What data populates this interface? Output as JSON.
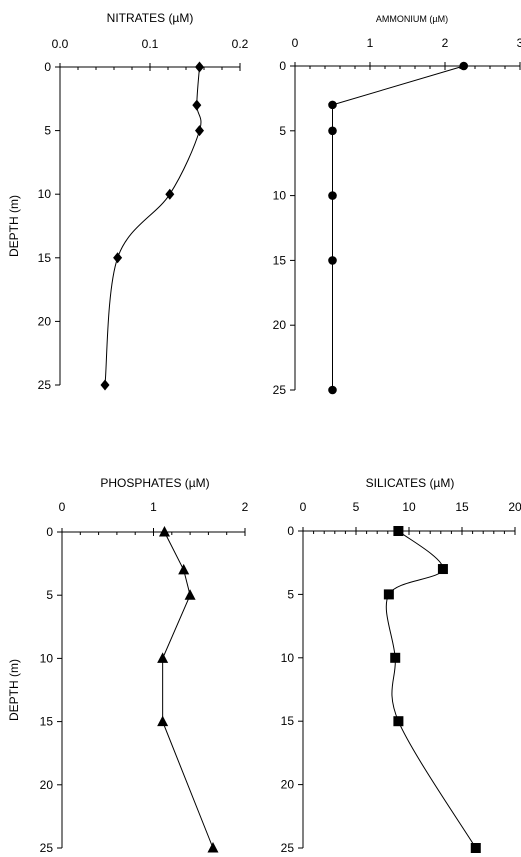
{
  "chart_data": [
    {
      "type": "line",
      "title": "NITRATES (µM)",
      "ylabel": "DEPTH (m)",
      "xlim": [
        0,
        0.2
      ],
      "ylim": [
        25,
        0
      ],
      "y_inverted": true,
      "x_axis_position": "top",
      "x_ticks": [
        0,
        0.1,
        0.2
      ],
      "x_tick_labels": [
        "0.0",
        "0.1",
        "0.2"
      ],
      "y_ticks": [
        0,
        5,
        10,
        15,
        20,
        25
      ],
      "y_tick_labels": [
        "0",
        "5",
        "10",
        "15",
        "20",
        "25"
      ],
      "marker": "diamond",
      "curve": "smooth",
      "series": [
        {
          "x": [
            0.155,
            0.152,
            0.155,
            0.122,
            0.064,
            0.05
          ],
          "y": [
            0,
            3,
            5,
            10,
            15,
            25
          ]
        }
      ]
    },
    {
      "type": "line",
      "title": "AMMONIUM (µM)",
      "ylabel": "",
      "xlim": [
        0,
        3
      ],
      "ylim": [
        25,
        0
      ],
      "y_inverted": true,
      "x_axis_position": "top",
      "x_ticks": [
        0,
        1,
        2,
        3
      ],
      "x_tick_labels": [
        "0",
        "1",
        "2",
        "3"
      ],
      "y_ticks": [
        0,
        5,
        10,
        15,
        20,
        25
      ],
      "y_tick_labels": [
        "0",
        "5",
        "10",
        "15",
        "20",
        "25"
      ],
      "marker": "circle",
      "curve": "straight",
      "series": [
        {
          "x": [
            2.25,
            0.5,
            0.5,
            0.5,
            0.5,
            0.5
          ],
          "y": [
            0,
            3,
            5,
            10,
            15,
            25
          ]
        }
      ]
    },
    {
      "type": "line",
      "title": "PHOSPHATES (µM)",
      "ylabel": "DEPTH (m)",
      "xlim": [
        0,
        2
      ],
      "ylim": [
        25,
        0
      ],
      "y_inverted": true,
      "x_axis_position": "top",
      "x_ticks": [
        0,
        1,
        2
      ],
      "x_tick_labels": [
        "0",
        "1",
        "2"
      ],
      "y_ticks": [
        0,
        5,
        10,
        15,
        20,
        25
      ],
      "y_tick_labels": [
        "0",
        "5",
        "10",
        "15",
        "20",
        "25"
      ],
      "marker": "triangle",
      "curve": "straight",
      "series": [
        {
          "x": [
            1.12,
            1.33,
            1.4,
            1.1,
            1.1,
            1.65
          ],
          "y": [
            0,
            3,
            5,
            10,
            15,
            25
          ]
        }
      ]
    },
    {
      "type": "line",
      "title": "SILICATES (µM)",
      "ylabel": "",
      "xlim": [
        0,
        20
      ],
      "ylim": [
        25,
        0
      ],
      "y_inverted": true,
      "x_axis_position": "top",
      "x_ticks": [
        0,
        5,
        10,
        15,
        20
      ],
      "x_tick_labels": [
        "0",
        "5",
        "10",
        "15",
        "20"
      ],
      "y_ticks": [
        0,
        5,
        10,
        15,
        20,
        25
      ],
      "y_tick_labels": [
        "0",
        "5",
        "10",
        "15",
        "20",
        "25"
      ],
      "marker": "square",
      "curve": "smooth",
      "series": [
        {
          "x": [
            9,
            13.2,
            8.1,
            8.7,
            9,
            16.3
          ],
          "y": [
            0,
            3,
            5,
            10,
            15,
            25
          ]
        }
      ]
    }
  ]
}
